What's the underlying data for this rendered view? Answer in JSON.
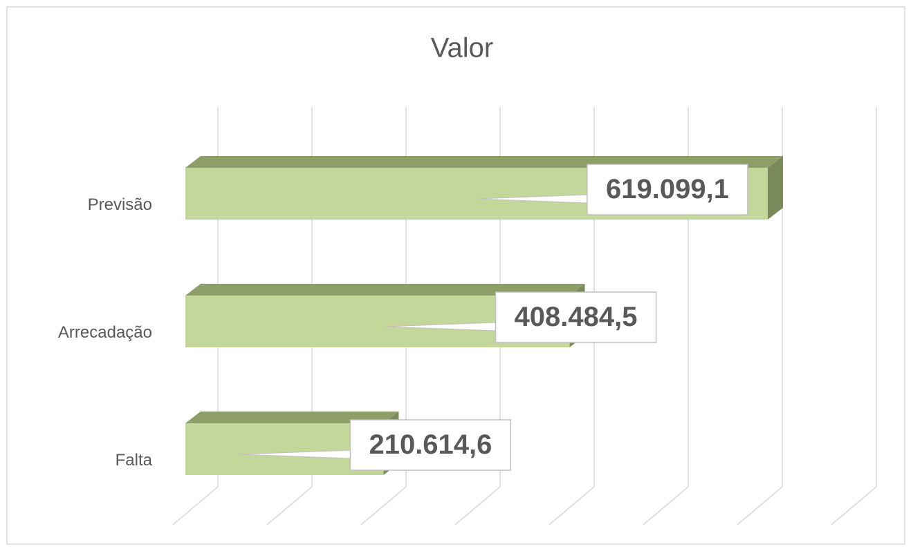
{
  "chart_data": {
    "type": "bar",
    "orientation": "horizontal",
    "title": "Valor",
    "categories": [
      "Previsão",
      "Arrecadação",
      "Falta"
    ],
    "values": [
      619099.1,
      408484.5,
      210614.6
    ],
    "value_labels": [
      "619.099,1",
      "408.484,5",
      "210.614,6"
    ],
    "color": "#c4d79b",
    "xlim": [
      0,
      700000
    ],
    "xticks": [
      0,
      100000,
      200000,
      300000,
      400000,
      500000,
      600000,
      700000
    ],
    "grid": true
  }
}
